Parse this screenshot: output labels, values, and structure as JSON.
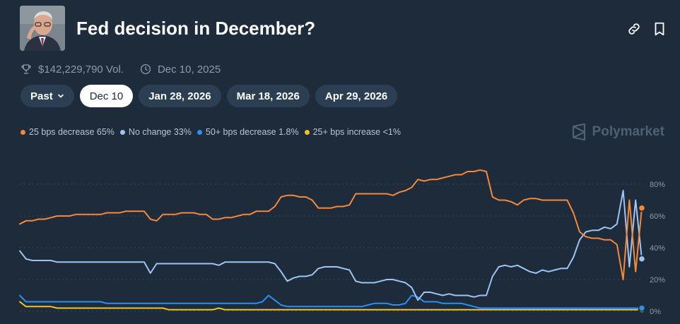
{
  "header": {
    "title": "Fed decision in December?",
    "link_icon": "link-icon",
    "bookmark_icon": "bookmark-icon"
  },
  "meta": {
    "volume": "$142,229,790 Vol.",
    "date": "Dec 10, 2025",
    "trophy_icon": "trophy-icon",
    "clock_icon": "clock-icon"
  },
  "tabs": [
    {
      "label": "Past",
      "active": false
    },
    {
      "label": "Dec 10",
      "active": true
    },
    {
      "label": "Jan 28, 2026",
      "active": false
    },
    {
      "label": "Mar 18, 2026",
      "active": false
    },
    {
      "label": "Apr 29, 2026",
      "active": false
    }
  ],
  "legend": [
    {
      "label": "25 bps decrease 65%",
      "color": "#f5883a"
    },
    {
      "label": "No change 33%",
      "color": "#9cc4f5"
    },
    {
      "label": "50+ bps decrease 1.8%",
      "color": "#2d8ef0"
    },
    {
      "label": "25+ bps increase <1%",
      "color": "#f2c321"
    }
  ],
  "brand": "Polymarket",
  "chart_data": {
    "type": "line",
    "ylim": [
      0,
      90
    ],
    "yticks": [
      "0%",
      "20%",
      "40%",
      "60%",
      "80%"
    ],
    "ytick_values": [
      0,
      20,
      40,
      60,
      80
    ],
    "grid": true,
    "x": [
      0,
      1,
      2,
      3,
      4,
      5,
      6,
      7,
      8,
      9,
      10,
      11,
      12,
      13,
      14,
      15,
      16,
      17,
      18,
      19,
      20,
      21,
      22,
      23,
      24,
      25,
      26,
      27,
      28,
      29,
      30,
      31,
      32,
      33,
      34,
      35,
      36,
      37,
      38,
      39,
      40,
      41,
      42,
      43,
      44,
      45,
      46,
      47,
      48,
      49,
      50,
      51,
      52,
      53,
      54,
      55,
      56,
      57,
      58,
      59,
      60,
      61,
      62,
      63,
      64,
      65,
      66,
      67,
      68,
      69,
      70,
      71,
      72,
      73,
      74,
      75,
      76,
      77,
      78,
      79,
      80,
      81,
      82,
      83,
      84,
      85,
      86,
      87,
      88,
      89,
      90,
      91,
      92,
      93,
      94,
      95,
      96,
      97,
      98,
      99,
      100
    ],
    "series": [
      {
        "name": "25 bps decrease",
        "color": "#f5883a",
        "values": [
          55,
          57,
          57,
          58,
          58,
          59,
          60,
          60,
          60,
          61,
          61,
          61,
          61,
          61,
          62,
          62,
          62,
          63,
          63,
          63,
          63,
          58,
          57,
          61,
          61,
          61,
          62,
          62,
          62,
          61,
          61,
          58,
          58,
          59,
          59,
          60,
          61,
          61,
          63,
          63,
          63,
          66,
          72,
          73,
          73,
          72,
          72,
          70,
          65,
          65,
          65,
          66,
          66,
          67,
          74,
          74,
          74,
          74,
          74,
          74,
          73,
          75,
          76,
          78,
          83,
          82,
          83,
          83,
          84,
          85,
          86,
          86,
          88,
          88,
          89,
          88,
          72,
          70,
          70,
          69,
          67,
          70,
          71,
          71,
          70,
          70,
          70,
          70,
          70,
          62,
          50,
          47,
          46,
          46,
          45,
          45,
          42,
          20,
          70,
          25,
          65
        ]
      },
      {
        "name": "No change",
        "color": "#9cc4f5",
        "values": [
          38,
          33,
          32,
          32,
          32,
          32,
          31,
          31,
          31,
          31,
          31,
          31,
          31,
          31,
          31,
          31,
          31,
          31,
          31,
          31,
          31,
          24,
          30,
          30,
          30,
          30,
          30,
          30,
          30,
          30,
          30,
          30,
          29,
          31,
          31,
          31,
          31,
          31,
          31,
          31,
          31,
          30,
          25,
          19,
          21,
          22,
          22,
          23,
          27,
          28,
          28,
          28,
          27,
          26,
          19,
          18,
          18,
          18,
          19,
          20,
          20,
          19,
          18,
          15,
          7,
          12,
          12,
          11,
          10,
          11,
          10,
          10,
          10,
          9,
          10,
          10,
          22,
          28,
          29,
          28,
          29,
          27,
          25,
          24,
          26,
          25,
          26,
          27,
          27,
          34,
          45,
          50,
          51,
          51,
          53,
          52,
          55,
          76,
          28,
          70,
          33
        ]
      },
      {
        "name": "50+ bps decrease",
        "color": "#2d8ef0",
        "values": [
          10,
          6,
          6,
          6,
          6,
          6,
          6,
          6,
          6,
          6,
          6,
          6,
          6,
          6,
          5,
          5,
          5,
          5,
          5,
          5,
          5,
          5,
          5,
          5,
          5,
          5,
          5,
          5,
          5,
          5,
          5,
          5,
          5,
          5,
          5,
          5,
          5,
          5,
          5,
          6,
          10,
          7,
          4,
          3,
          3,
          3,
          3,
          3,
          3,
          3,
          3,
          3,
          3,
          3,
          3,
          3,
          4,
          5,
          5,
          5,
          4,
          4,
          5,
          10,
          9,
          6,
          6,
          6,
          5,
          5,
          5,
          5,
          4,
          3,
          2,
          2,
          2,
          2,
          2,
          2,
          2,
          2,
          2,
          2,
          2,
          2,
          2,
          2,
          2,
          2,
          2,
          2,
          2,
          2,
          2,
          2,
          2,
          2,
          2,
          2,
          2
        ]
      },
      {
        "name": "25+ bps increase",
        "color": "#f2c321",
        "values": [
          6,
          3,
          3,
          3,
          3,
          3,
          2,
          2,
          2,
          2,
          2,
          2,
          2,
          2,
          2,
          2,
          2,
          2,
          2,
          2,
          2,
          2,
          2,
          2,
          1,
          1,
          1,
          1,
          1,
          1,
          1,
          1,
          2,
          1,
          1,
          1,
          1,
          1,
          1,
          1,
          1,
          1,
          1,
          1,
          1,
          1,
          1,
          1,
          1,
          1,
          1,
          1,
          1,
          1,
          1,
          1,
          1,
          1,
          1,
          1,
          1,
          1,
          1,
          1,
          1,
          1,
          1,
          1,
          1,
          1,
          1,
          1,
          1,
          1,
          1,
          1,
          1,
          1,
          1,
          1,
          1,
          1,
          1,
          1,
          1,
          1,
          1,
          1,
          1,
          1,
          1,
          1,
          1,
          1,
          1,
          1,
          1,
          1,
          1,
          1,
          1
        ]
      }
    ]
  }
}
